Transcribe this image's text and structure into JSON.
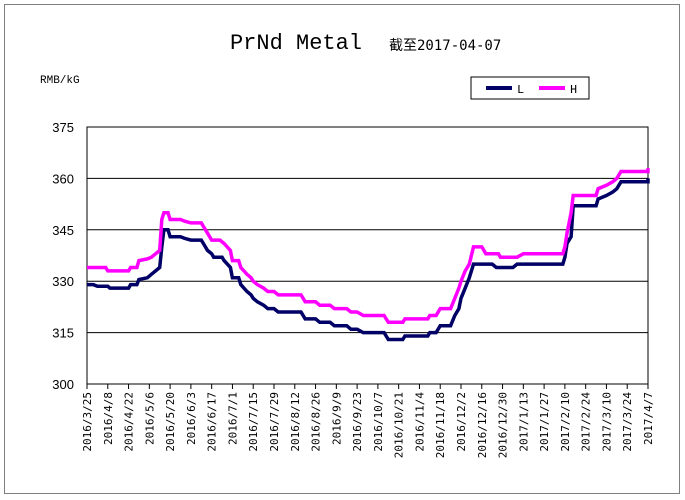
{
  "chart_data": {
    "type": "line",
    "title": "PrNd Metal",
    "subtitle": "截至2017-04-07",
    "ylabel": "RMB/kG",
    "xlabel": "",
    "ylim": [
      300,
      375
    ],
    "yticks": [
      300,
      315,
      330,
      345,
      360,
      375
    ],
    "grid": true,
    "legend_position": "top-right",
    "categories": [
      "2016/3/25",
      "2016/4/8",
      "2016/4/22",
      "2016/5/6",
      "2016/5/20",
      "2016/6/3",
      "2016/6/17",
      "2016/7/1",
      "2016/7/15",
      "2016/7/29",
      "2016/8/12",
      "2016/8/26",
      "2016/9/9",
      "2016/9/23",
      "2016/10/7",
      "2016/10/21",
      "2016/11/4",
      "2016/11/18",
      "2016/12/2",
      "2016/12/16",
      "2016/12/30",
      "2017/1/13",
      "2017/1/27",
      "2017/2/10",
      "2017/2/24",
      "2017/3/10",
      "2017/3/24",
      "2017/4/7"
    ],
    "series": [
      {
        "name": "L",
        "color": "#000066",
        "points": [
          [
            0,
            329
          ],
          [
            0.3,
            329
          ],
          [
            0.5,
            328.5
          ],
          [
            1.0,
            328.5
          ],
          [
            1.1,
            328
          ],
          [
            2.0,
            328
          ],
          [
            2.1,
            329
          ],
          [
            2.4,
            329
          ],
          [
            2.5,
            330.5
          ],
          [
            2.9,
            331
          ],
          [
            3.1,
            332
          ],
          [
            3.3,
            333
          ],
          [
            3.5,
            334
          ],
          [
            3.6,
            340
          ],
          [
            3.7,
            345
          ],
          [
            3.9,
            345
          ],
          [
            4.0,
            343
          ],
          [
            4.5,
            343
          ],
          [
            4.7,
            342.5
          ],
          [
            5.0,
            342
          ],
          [
            5.5,
            342
          ],
          [
            5.6,
            341
          ],
          [
            5.8,
            339
          ],
          [
            6.0,
            338
          ],
          [
            6.1,
            337
          ],
          [
            6.5,
            337
          ],
          [
            6.6,
            336
          ],
          [
            6.9,
            334
          ],
          [
            7.0,
            331
          ],
          [
            7.3,
            331
          ],
          [
            7.4,
            329
          ],
          [
            7.7,
            327
          ],
          [
            7.9,
            326
          ],
          [
            8.0,
            325
          ],
          [
            8.2,
            324
          ],
          [
            8.5,
            323
          ],
          [
            8.7,
            322
          ],
          [
            9.0,
            322
          ],
          [
            9.2,
            321
          ],
          [
            10.0,
            321
          ],
          [
            10.3,
            321
          ],
          [
            10.5,
            319
          ],
          [
            11.0,
            319
          ],
          [
            11.2,
            318
          ],
          [
            11.7,
            318
          ],
          [
            11.9,
            317
          ],
          [
            12.5,
            317
          ],
          [
            12.7,
            316
          ],
          [
            13.0,
            316
          ],
          [
            13.3,
            315
          ],
          [
            14.0,
            315
          ],
          [
            14.3,
            315
          ],
          [
            14.5,
            313
          ],
          [
            15.2,
            313
          ],
          [
            15.3,
            314
          ],
          [
            16.0,
            314
          ],
          [
            16.4,
            314
          ],
          [
            16.5,
            315
          ],
          [
            16.8,
            315
          ],
          [
            17.0,
            317
          ],
          [
            17.5,
            317
          ],
          [
            17.7,
            320
          ],
          [
            17.9,
            322
          ],
          [
            18.0,
            325
          ],
          [
            18.2,
            328
          ],
          [
            18.4,
            331
          ],
          [
            18.6,
            335
          ],
          [
            19.0,
            335
          ],
          [
            19.5,
            335
          ],
          [
            19.7,
            334
          ],
          [
            20.5,
            334
          ],
          [
            20.7,
            335
          ],
          [
            21.5,
            335
          ],
          [
            22.0,
            335
          ],
          [
            22.5,
            335
          ],
          [
            22.9,
            335
          ],
          [
            23.0,
            337
          ],
          [
            23.1,
            341
          ],
          [
            23.3,
            343
          ],
          [
            23.4,
            352
          ],
          [
            24.0,
            352
          ],
          [
            24.5,
            352
          ],
          [
            24.6,
            354
          ],
          [
            25.0,
            355
          ],
          [
            25.3,
            356
          ],
          [
            25.5,
            357
          ],
          [
            25.7,
            359
          ],
          [
            26.3,
            359
          ],
          [
            27.0,
            359
          ],
          [
            27.0,
            360
          ]
        ]
      },
      {
        "name": "H",
        "color": "#ff00ff",
        "points": [
          [
            0,
            334
          ],
          [
            0.3,
            334
          ],
          [
            0.5,
            334
          ],
          [
            0.9,
            334
          ],
          [
            1.0,
            333
          ],
          [
            2.0,
            333
          ],
          [
            2.1,
            334
          ],
          [
            2.4,
            334
          ],
          [
            2.5,
            336
          ],
          [
            2.9,
            336.5
          ],
          [
            3.1,
            337
          ],
          [
            3.3,
            338
          ],
          [
            3.5,
            339
          ],
          [
            3.6,
            348
          ],
          [
            3.7,
            350
          ],
          [
            3.9,
            350
          ],
          [
            4.0,
            348
          ],
          [
            4.5,
            348
          ],
          [
            4.7,
            347.5
          ],
          [
            5.0,
            347
          ],
          [
            5.5,
            347
          ],
          [
            5.6,
            346
          ],
          [
            5.8,
            344
          ],
          [
            6.0,
            342
          ],
          [
            6.4,
            342
          ],
          [
            6.6,
            341
          ],
          [
            6.9,
            339
          ],
          [
            7.0,
            336
          ],
          [
            7.3,
            336
          ],
          [
            7.4,
            334
          ],
          [
            7.7,
            332
          ],
          [
            7.9,
            331
          ],
          [
            8.0,
            330
          ],
          [
            8.2,
            329
          ],
          [
            8.5,
            328
          ],
          [
            8.7,
            327
          ],
          [
            9.0,
            327
          ],
          [
            9.2,
            326
          ],
          [
            10.0,
            326
          ],
          [
            10.3,
            326
          ],
          [
            10.5,
            324
          ],
          [
            11.0,
            324
          ],
          [
            11.2,
            323
          ],
          [
            11.7,
            323
          ],
          [
            11.9,
            322
          ],
          [
            12.5,
            322
          ],
          [
            12.7,
            321
          ],
          [
            13.0,
            321
          ],
          [
            13.3,
            320
          ],
          [
            14.0,
            320
          ],
          [
            14.3,
            320
          ],
          [
            14.5,
            318
          ],
          [
            15.2,
            318
          ],
          [
            15.3,
            319
          ],
          [
            16.0,
            319
          ],
          [
            16.4,
            319
          ],
          [
            16.5,
            320
          ],
          [
            16.8,
            320
          ],
          [
            17.0,
            322
          ],
          [
            17.5,
            322
          ],
          [
            17.7,
            325
          ],
          [
            17.9,
            328
          ],
          [
            18.0,
            330
          ],
          [
            18.2,
            333
          ],
          [
            18.4,
            335
          ],
          [
            18.6,
            340
          ],
          [
            19.0,
            340
          ],
          [
            19.2,
            338
          ],
          [
            19.8,
            338
          ],
          [
            19.9,
            337
          ],
          [
            20.5,
            337
          ],
          [
            20.7,
            337
          ],
          [
            21.0,
            338
          ],
          [
            22.0,
            338
          ],
          [
            22.9,
            338
          ],
          [
            23.0,
            340
          ],
          [
            23.1,
            344
          ],
          [
            23.3,
            350
          ],
          [
            23.4,
            355
          ],
          [
            24.0,
            355
          ],
          [
            24.5,
            355
          ],
          [
            24.6,
            357
          ],
          [
            25.0,
            358
          ],
          [
            25.3,
            359
          ],
          [
            25.5,
            360
          ],
          [
            25.7,
            362
          ],
          [
            26.3,
            362
          ],
          [
            27.0,
            362
          ],
          [
            27.0,
            363
          ]
        ]
      }
    ]
  }
}
